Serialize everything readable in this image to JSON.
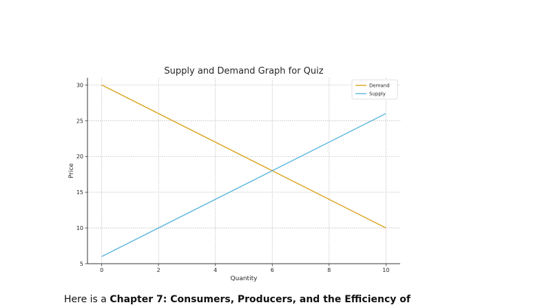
{
  "chart_data": {
    "type": "line",
    "title": "Supply and Demand Graph for Quiz",
    "xlabel": "Quantity",
    "ylabel": "Price",
    "xlim": [
      -0.5,
      10.5
    ],
    "ylim": [
      5,
      31
    ],
    "xticks": [
      0,
      2,
      4,
      6,
      8,
      10
    ],
    "yticks": [
      5,
      10,
      15,
      20,
      25,
      30
    ],
    "grid": true,
    "legend_position": "top-right",
    "series": [
      {
        "name": "Demand",
        "color": "#DAA21B",
        "x": [
          0,
          10
        ],
        "y": [
          30,
          10
        ]
      },
      {
        "name": "Supply",
        "color": "#5BB5DD",
        "x": [
          0,
          10
        ],
        "y": [
          6,
          26
        ]
      }
    ]
  },
  "caption": {
    "prefix": "Here is a ",
    "bold": "Chapter 7: Consumers, Producers, and the Efficiency of"
  }
}
